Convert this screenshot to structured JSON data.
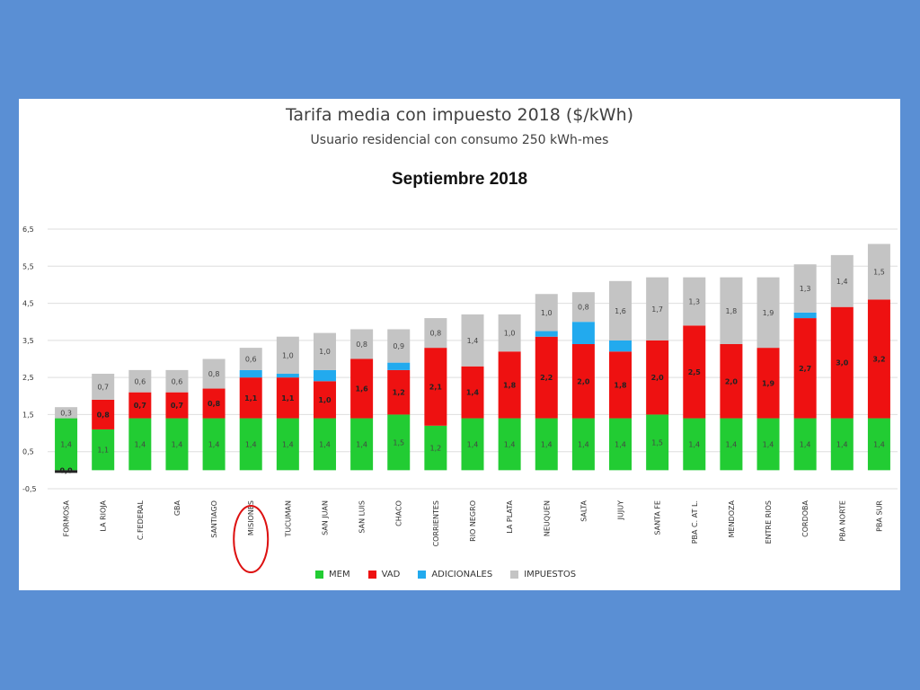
{
  "chart_data": {
    "type": "bar",
    "stacked": true,
    "title": "Tarifa media con impuesto 2018 ($/kWh)",
    "subtitle": "Usuario residencial con consumo 250 kWh-mes",
    "period_label": "Septiembre 2018",
    "ylim": [
      -0.5,
      6.5
    ],
    "yticks": [
      "-0,5",
      "0,5",
      "1,5",
      "2,5",
      "3,5",
      "4,5",
      "5,5",
      "6,5"
    ],
    "grid": true,
    "legend_position": "bottom",
    "highlighted_category": "MISIONES",
    "categories": [
      "FORMOSA",
      "LA RIOJA",
      "C.FEDERAL",
      "GBA",
      "SANTIAGO",
      "MISIONES",
      "TUCUMAN",
      "SAN JUAN",
      "SAN LUIS",
      "CHACO",
      "CORRIENTES",
      "RIO NEGRO",
      "LA PLATA",
      "NEUQUEN",
      "SALTA",
      "JUJUY",
      "SANTA FE",
      "PBA C. AT L.",
      "MENDOZA",
      "ENTRE RIOS",
      "CORDOBA",
      "PBA NORTE",
      "PBA SUR"
    ],
    "series": [
      {
        "name": "MEM",
        "color": "#22cc33",
        "values": [
          1.4,
          1.1,
          1.4,
          1.4,
          1.4,
          1.4,
          1.4,
          1.4,
          1.4,
          1.5,
          1.2,
          1.4,
          1.4,
          1.4,
          1.4,
          1.4,
          1.5,
          1.4,
          1.4,
          1.4,
          1.4,
          1.4,
          1.4
        ],
        "labels": [
          "1,4",
          "1,1",
          "1,4",
          "1,4",
          "1,4",
          "1,4",
          "1,4",
          "1,4",
          "1,4",
          "1,5",
          "1,2",
          "1,4",
          "1,4",
          "1,4",
          "1,4",
          "1,4",
          "1,5",
          "1,4",
          "1,4",
          "1,4",
          "1,4",
          "1,4",
          "1,4"
        ]
      },
      {
        "name": "VAD",
        "color": "#ee1111",
        "values": [
          0.0,
          0.8,
          0.7,
          0.7,
          0.8,
          1.1,
          1.1,
          1.0,
          1.6,
          1.2,
          2.1,
          1.4,
          1.8,
          2.2,
          2.0,
          1.8,
          2.0,
          2.5,
          2.0,
          1.9,
          2.7,
          3.0,
          3.2
        ],
        "labels": [
          "0,0",
          "0,8",
          "0,7",
          "0,7",
          "0,8",
          "1,1",
          "1,1",
          "1,0",
          "1,6",
          "1,2",
          "2,1",
          "1,4",
          "1,8",
          "2,2",
          "2,0",
          "1,8",
          "2,0",
          "2,5",
          "2,0",
          "1,9",
          "2,7",
          "3,0",
          "3,2"
        ]
      },
      {
        "name": "ADICIONALES",
        "color": "#22aaee",
        "values": [
          0,
          0,
          0,
          0,
          0,
          0.2,
          0.1,
          0.3,
          0,
          0.2,
          0,
          0,
          0,
          0.15,
          0.6,
          0.3,
          0,
          0,
          0,
          0,
          0.15,
          0,
          0
        ],
        "labels": [
          "",
          "",
          "",
          "",
          "",
          "",
          "",
          "",
          "",
          "",
          "",
          "",
          "",
          "",
          "",
          "",
          "",
          "",
          "",
          "",
          "",
          "",
          ""
        ]
      },
      {
        "name": "IMPUESTOS",
        "color": "#c4c4c4",
        "values": [
          0.3,
          0.7,
          0.6,
          0.6,
          0.8,
          0.6,
          1.0,
          1.0,
          0.8,
          0.9,
          0.8,
          1.4,
          1.0,
          1.0,
          0.8,
          1.6,
          1.7,
          1.3,
          1.8,
          1.9,
          1.3,
          1.4,
          1.5
        ],
        "labels": [
          "0,3",
          "0,7",
          "0,6",
          "0,6",
          "0,8",
          "0,6",
          "1,0",
          "1,0",
          "0,8",
          "0,9",
          "0,8",
          "1,4",
          "1,0",
          "1,0",
          "0,8",
          "1,6",
          "1,7",
          "1,3",
          "1,8",
          "1,9",
          "1,3",
          "1,4",
          "1,5"
        ]
      }
    ]
  }
}
